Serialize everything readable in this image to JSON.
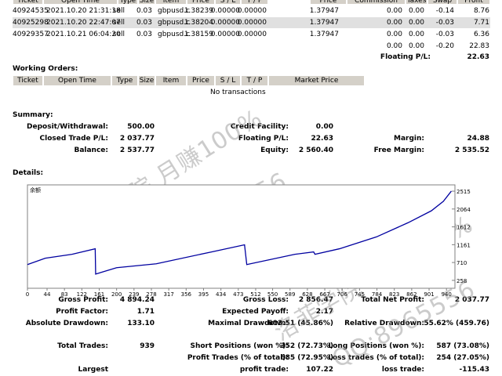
{
  "trades": {
    "header": [
      "Ticket",
      "Open Time",
      "Type",
      "Size",
      "Item",
      "Price",
      "S / L",
      "T / P",
      "Price",
      "Commission",
      "Taxes",
      "Swap",
      "Profit"
    ],
    "rows": [
      [
        "40924535",
        "2021.10.20 21:31:18",
        "sell",
        "0.03",
        "gbpusd.c",
        "1.38239",
        "0.00000",
        "0.00000",
        "1.37947",
        "0.00",
        "0.00",
        "-0.14",
        "8.76"
      ],
      [
        "40925298",
        "2021.10.20 22:47:07",
        "sell",
        "0.03",
        "gbpusd.c",
        "1.38204",
        "0.00000",
        "0.00000",
        "1.37947",
        "0.00",
        "0.00",
        "-0.03",
        "7.71"
      ],
      [
        "40929357",
        "2021.10.21 06:04:20",
        "sell",
        "0.03",
        "gbpusd.c",
        "1.38159",
        "0.00000",
        "0.00000",
        "1.37947",
        "0.00",
        "0.00",
        "-0.03",
        "6.36"
      ]
    ],
    "totals": [
      "0.00",
      "0.00",
      "-0.20",
      "22.83"
    ],
    "floating_label": "Floating P/L:",
    "floating_value": "22.63"
  },
  "working_orders": {
    "title": "Working Orders:",
    "header": [
      "Ticket",
      "Open Time",
      "Type",
      "Size",
      "Item",
      "Price",
      "S / L",
      "T / P",
      "Market Price"
    ],
    "empty": "No transactions"
  },
  "summary": {
    "title": "Summary:",
    "rows": [
      [
        [
          "Deposit/Withdrawal:",
          "500.00"
        ],
        [
          "Credit Facility:",
          "0.00"
        ],
        null
      ],
      [
        [
          "Closed Trade P/L:",
          "2 037.77"
        ],
        [
          "Floating P/L:",
          "22.63"
        ],
        [
          "Margin:",
          "24.88"
        ]
      ],
      [
        [
          "Balance:",
          "2 537.77"
        ],
        [
          "Equity:",
          "2 560.40"
        ],
        [
          "Free Margin:",
          "2 535.52"
        ]
      ]
    ]
  },
  "details": {
    "title": "Details:",
    "chart": {
      "type": "line",
      "label": "余额",
      "color": "#0000a0",
      "x": [
        0,
        40,
        100,
        152,
        153,
        200,
        289,
        413,
        487,
        492,
        600,
        642,
        645,
        700,
        783,
        854,
        906,
        933,
        951
      ],
      "values": [
        658,
        818,
        918,
        1058,
        418,
        578,
        678,
        978,
        1158,
        658,
        918,
        978,
        918,
        1058,
        1358,
        1718,
        2018,
        2258,
        2518
      ],
      "xlim": [
        0,
        959
      ],
      "ylim": [
        58,
        2675
      ],
      "xticks": [
        0,
        44,
        83,
        122,
        161,
        200,
        239,
        278,
        317,
        356,
        395,
        434,
        473,
        512,
        550,
        589,
        628,
        667,
        706,
        745,
        784,
        823,
        862,
        901,
        940
      ],
      "yticks": [
        258,
        710,
        1161,
        1612,
        2064,
        2515
      ]
    }
  },
  "stats": {
    "rows": [
      [
        [
          "Gross Profit:",
          "4 894.24"
        ],
        [
          "Gross Loss:",
          "2 856.47"
        ],
        [
          "Total Net Profit:",
          "2 037.77"
        ]
      ],
      [
        [
          "Profit Factor:",
          "1.71"
        ],
        [
          "Expected Payoff:",
          "2.17"
        ],
        null
      ],
      [
        [
          "Absolute Drawdown:",
          "133.10"
        ],
        [
          "Maximal Drawdown:",
          "603.51 (45.86%)"
        ],
        [
          "Relative Drawdown:",
          "55.62% (459.76)"
        ]
      ],
      [
        [
          "Total Trades:",
          "939"
        ],
        [
          "Short Positions (won %):",
          "352 (72.73%)"
        ],
        [
          "Long Positions (won %):",
          "587 (73.08%)"
        ]
      ],
      [
        null,
        [
          "Profit Trades (% of total):",
          "685 (72.95%)"
        ],
        [
          "Loss trades (% of total):",
          "254 (27.05%)"
        ]
      ],
      [
        [
          "Largest"
        ],
        [
          "profit trade:",
          "107.22"
        ],
        [
          "loss trade:",
          "-115.43"
        ]
      ]
    ]
  },
  "watermarks": [
    "洛菲学院 月赚100%",
    "QQ:8965556",
    "洛菲学院 月赚100%",
    "QQ:8965556"
  ]
}
